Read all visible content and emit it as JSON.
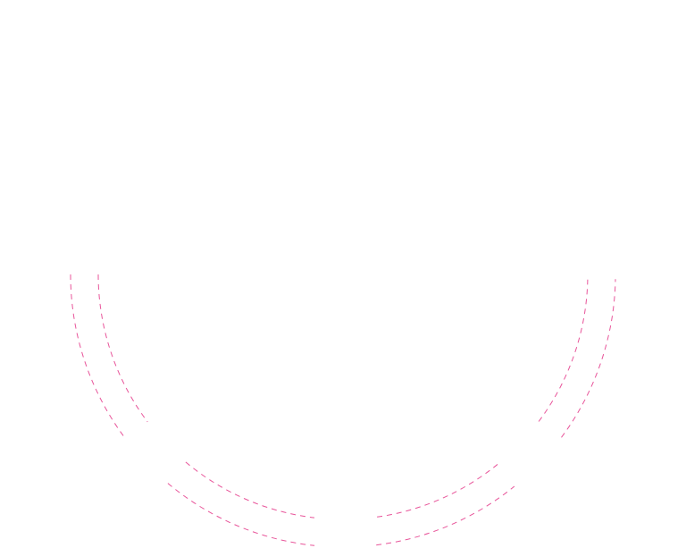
{
  "colors": {
    "background": "#ffffff",
    "arc_stroke": "#e8559a"
  },
  "rings": [
    {
      "name": "outer-ring",
      "segments": 4
    },
    {
      "name": "inner-ring",
      "segments": 4
    }
  ]
}
